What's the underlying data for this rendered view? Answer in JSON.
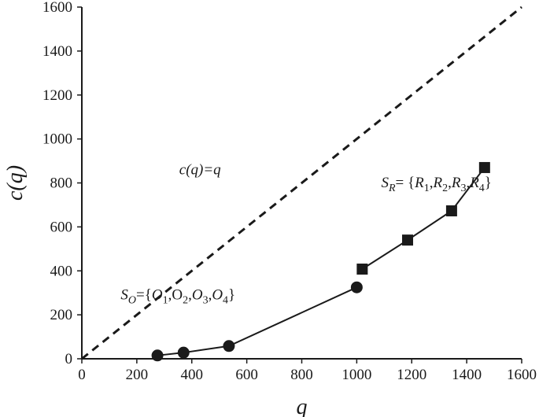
{
  "chart_data": {
    "type": "line",
    "xlabel": "q",
    "ylabel": "c(q)",
    "xlim": [
      0,
      1600
    ],
    "ylim": [
      0,
      1600
    ],
    "x_ticks": [
      0,
      200,
      400,
      600,
      800,
      1000,
      1200,
      1400,
      1600
    ],
    "y_ticks": [
      0,
      200,
      400,
      600,
      800,
      1000,
      1200,
      1400,
      1600
    ],
    "grid": false,
    "series": [
      {
        "marker": "circle",
        "color": "#1a1a1a",
        "points": [
          [
            275,
            15
          ],
          [
            370,
            28
          ],
          [
            535,
            58
          ],
          [
            1000,
            325
          ]
        ]
      },
      {
        "marker": "square",
        "color": "#1a1a1a",
        "points": [
          [
            1020,
            408
          ],
          [
            1185,
            540
          ],
          [
            1345,
            673
          ],
          [
            1465,
            870
          ]
        ]
      },
      {
        "style": "dashed",
        "color": "#1a1a1a",
        "points": [
          [
            0,
            0
          ],
          [
            1600,
            1600
          ]
        ]
      }
    ],
    "annotations": {
      "diagonal": {
        "text": "c(q)=q",
        "at": [
          430,
          840
        ]
      },
      "set_o": {
        "at": [
          350,
          270
        ],
        "parts": [
          {
            "t": "S",
            "it": true
          },
          {
            "t": "O",
            "it": true,
            "sub": true
          },
          {
            "t": "={"
          },
          {
            "t": "O",
            "it": true
          },
          {
            "t": "1",
            "sub": true
          },
          {
            "t": ",O"
          },
          {
            "t": "2",
            "sub": true
          },
          {
            "t": ","
          },
          {
            "t": "O",
            "it": true
          },
          {
            "t": "3",
            "sub": true
          },
          {
            "t": ","
          },
          {
            "t": "O",
            "it": true
          },
          {
            "t": "4",
            "sub": true
          },
          {
            "t": "}"
          }
        ]
      },
      "set_r": {
        "at": [
          1290,
          780
        ],
        "parts": [
          {
            "t": "S",
            "it": true
          },
          {
            "t": "R",
            "it": true,
            "sub": true
          },
          {
            "t": "= {"
          },
          {
            "t": "R",
            "it": true
          },
          {
            "t": "1",
            "sub": true
          },
          {
            "t": ","
          },
          {
            "t": "R",
            "it": true
          },
          {
            "t": "2",
            "sub": true
          },
          {
            "t": ","
          },
          {
            "t": "R",
            "it": true
          },
          {
            "t": "3",
            "sub": true
          },
          {
            "t": ","
          },
          {
            "t": "R",
            "it": true
          },
          {
            "t": "4",
            "sub": true
          },
          {
            "t": "}"
          }
        ]
      }
    }
  }
}
